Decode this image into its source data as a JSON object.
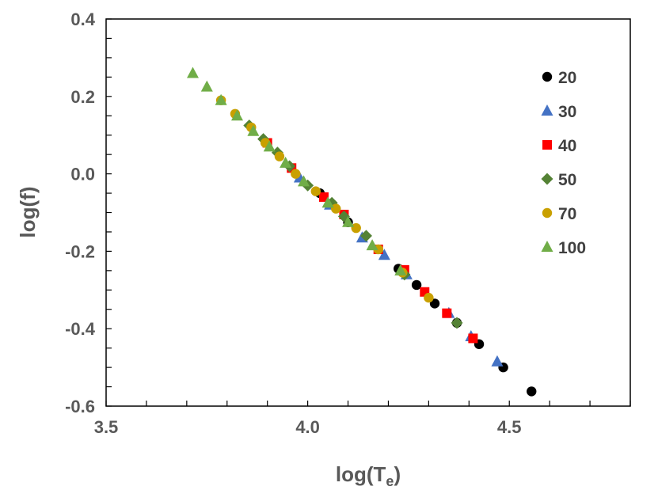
{
  "chart_data": {
    "type": "scatter",
    "xlabel": "log(T",
    "xlabel_sub": "e",
    "xlabel_close": ")",
    "ylabel": "log(f)",
    "xlim": [
      3.5,
      4.8
    ],
    "ylim": [
      -0.6,
      0.4
    ],
    "x_ticks": [
      3.5,
      4.0,
      4.5
    ],
    "x_tick_labels": [
      "3.5",
      "4.0",
      "4.5"
    ],
    "y_ticks": [
      0.4,
      0.2,
      0.0,
      -0.2,
      -0.4,
      -0.6
    ],
    "y_tick_labels": [
      "0.4",
      "0.2",
      "0.0",
      "-0.2",
      "-0.4",
      "-0.6"
    ],
    "grid": false,
    "legend_position": "right",
    "series": [
      {
        "name": "20",
        "marker": "circle",
        "color": "#000000",
        "x": [
          4.03,
          4.1,
          4.225,
          4.27,
          4.315,
          4.37,
          4.425,
          4.485,
          4.555
        ],
        "y": [
          -0.05,
          -0.125,
          -0.245,
          -0.287,
          -0.335,
          -0.385,
          -0.44,
          -0.5,
          -0.562
        ]
      },
      {
        "name": "30",
        "marker": "triangle",
        "color": "#4472C4",
        "x": [
          3.98,
          4.055,
          4.135,
          4.19,
          4.245,
          4.35,
          4.405,
          4.47
        ],
        "y": [
          -0.01,
          -0.08,
          -0.165,
          -0.21,
          -0.26,
          -0.36,
          -0.42,
          -0.485
        ]
      },
      {
        "name": "40",
        "marker": "square",
        "color": "#FF0000",
        "x": [
          3.9,
          3.96,
          4.04,
          4.09,
          4.175,
          4.24,
          4.29,
          4.345,
          4.41
        ],
        "y": [
          0.08,
          0.015,
          -0.06,
          -0.105,
          -0.195,
          -0.248,
          -0.305,
          -0.36,
          -0.425
        ]
      },
      {
        "name": "50",
        "marker": "diamond",
        "color": "#548235",
        "x": [
          3.855,
          3.89,
          3.925,
          3.955,
          4.0,
          4.06,
          4.09,
          4.145,
          4.24,
          4.37
        ],
        "y": [
          0.125,
          0.09,
          0.055,
          0.02,
          -0.03,
          -0.075,
          -0.11,
          -0.16,
          -0.26,
          -0.385
        ]
      },
      {
        "name": "70",
        "marker": "circle",
        "color": "#C9A000",
        "x": [
          3.785,
          3.82,
          3.86,
          3.895,
          3.93,
          3.97,
          4.02,
          4.07,
          4.12,
          4.175,
          4.235,
          4.3
        ],
        "y": [
          0.19,
          0.155,
          0.12,
          0.08,
          0.045,
          0.0,
          -0.045,
          -0.09,
          -0.14,
          -0.195,
          -0.255,
          -0.32
        ]
      },
      {
        "name": "100",
        "marker": "triangle",
        "color": "#70AD47",
        "x": [
          3.715,
          3.75,
          3.785,
          3.825,
          3.865,
          3.905,
          3.945,
          3.99,
          4.05,
          4.1,
          4.16,
          4.23
        ],
        "y": [
          0.26,
          0.225,
          0.19,
          0.15,
          0.11,
          0.07,
          0.028,
          -0.02,
          -0.075,
          -0.125,
          -0.185,
          -0.25
        ]
      }
    ]
  }
}
